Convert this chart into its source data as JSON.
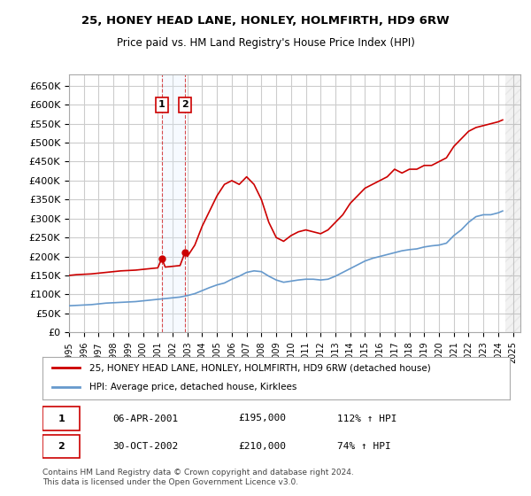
{
  "title1": "25, HONEY HEAD LANE, HONLEY, HOLMFIRTH, HD9 6RW",
  "title2": "Price paid vs. HM Land Registry's House Price Index (HPI)",
  "ylabel": "",
  "ylim": [
    0,
    680000
  ],
  "yticks": [
    0,
    50000,
    100000,
    150000,
    200000,
    250000,
    300000,
    350000,
    400000,
    450000,
    500000,
    550000,
    600000,
    650000
  ],
  "ytick_labels": [
    "£0",
    "£50K",
    "£100K",
    "£150K",
    "£200K",
    "£250K",
    "£300K",
    "£350K",
    "£400K",
    "£450K",
    "£500K",
    "£550K",
    "£600K",
    "£650K"
  ],
  "xlim_start": 1995.0,
  "xlim_end": 2025.5,
  "transaction1": {
    "num": 1,
    "date": "06-APR-2001",
    "year": 2001.27,
    "price": 195000,
    "hpi_pct": "112% ↑ HPI"
  },
  "transaction2": {
    "num": 2,
    "date": "30-OCT-2002",
    "year": 2002.83,
    "price": 210000,
    "hpi_pct": "74% ↑ HPI"
  },
  "legend_line1": "25, HONEY HEAD LANE, HONLEY, HOLMFIRTH, HD9 6RW (detached house)",
  "legend_line2": "HPI: Average price, detached house, Kirklees",
  "footnote": "Contains HM Land Registry data © Crown copyright and database right 2024.\nThis data is licensed under the Open Government Licence v3.0.",
  "red_color": "#cc0000",
  "blue_color": "#6699cc",
  "bg_color": "#ffffff",
  "grid_color": "#cccccc",
  "shade_color": "#ddeeff",
  "hatch_start": 2024.5,
  "red_x": [
    1995.0,
    1995.5,
    1996.0,
    1996.5,
    1997.0,
    1997.5,
    1998.0,
    1998.5,
    1999.0,
    1999.5,
    2000.0,
    2000.5,
    2001.0,
    2001.27,
    2001.5,
    2002.0,
    2002.5,
    2002.83,
    2003.0,
    2003.5,
    2004.0,
    2004.5,
    2005.0,
    2005.5,
    2006.0,
    2006.5,
    2007.0,
    2007.5,
    2008.0,
    2008.5,
    2009.0,
    2009.5,
    2010.0,
    2010.5,
    2011.0,
    2011.5,
    2012.0,
    2012.5,
    2013.0,
    2013.5,
    2014.0,
    2014.5,
    2015.0,
    2015.5,
    2016.0,
    2016.5,
    2017.0,
    2017.5,
    2018.0,
    2018.5,
    2019.0,
    2019.5,
    2020.0,
    2020.5,
    2021.0,
    2021.5,
    2022.0,
    2022.5,
    2023.0,
    2023.5,
    2024.0,
    2024.3
  ],
  "red_y": [
    150000,
    152000,
    153000,
    154000,
    156000,
    158000,
    160000,
    162000,
    163000,
    164000,
    166000,
    168000,
    170000,
    195000,
    172000,
    174000,
    176000,
    210000,
    200000,
    230000,
    280000,
    320000,
    360000,
    390000,
    400000,
    390000,
    410000,
    390000,
    350000,
    290000,
    250000,
    240000,
    255000,
    265000,
    270000,
    265000,
    260000,
    270000,
    290000,
    310000,
    340000,
    360000,
    380000,
    390000,
    400000,
    410000,
    430000,
    420000,
    430000,
    430000,
    440000,
    440000,
    450000,
    460000,
    490000,
    510000,
    530000,
    540000,
    545000,
    550000,
    555000,
    560000
  ],
  "blue_x": [
    1995.0,
    1995.5,
    1996.0,
    1996.5,
    1997.0,
    1997.5,
    1998.0,
    1998.5,
    1999.0,
    1999.5,
    2000.0,
    2000.5,
    2001.0,
    2001.5,
    2002.0,
    2002.5,
    2003.0,
    2003.5,
    2004.0,
    2004.5,
    2005.0,
    2005.5,
    2006.0,
    2006.5,
    2007.0,
    2007.5,
    2008.0,
    2008.5,
    2009.0,
    2009.5,
    2010.0,
    2010.5,
    2011.0,
    2011.5,
    2012.0,
    2012.5,
    2013.0,
    2013.5,
    2014.0,
    2014.5,
    2015.0,
    2015.5,
    2016.0,
    2016.5,
    2017.0,
    2017.5,
    2018.0,
    2018.5,
    2019.0,
    2019.5,
    2020.0,
    2020.5,
    2021.0,
    2021.5,
    2022.0,
    2022.5,
    2023.0,
    2023.5,
    2024.0,
    2024.3
  ],
  "blue_y": [
    70000,
    71000,
    72000,
    73000,
    75000,
    77000,
    78000,
    79000,
    80000,
    81000,
    83000,
    85000,
    87000,
    89000,
    91000,
    93000,
    97000,
    102000,
    110000,
    118000,
    125000,
    130000,
    140000,
    148000,
    158000,
    162000,
    160000,
    148000,
    138000,
    132000,
    135000,
    138000,
    140000,
    140000,
    138000,
    140000,
    148000,
    158000,
    168000,
    178000,
    188000,
    195000,
    200000,
    205000,
    210000,
    215000,
    218000,
    220000,
    225000,
    228000,
    230000,
    235000,
    255000,
    270000,
    290000,
    305000,
    310000,
    310000,
    315000,
    320000
  ]
}
